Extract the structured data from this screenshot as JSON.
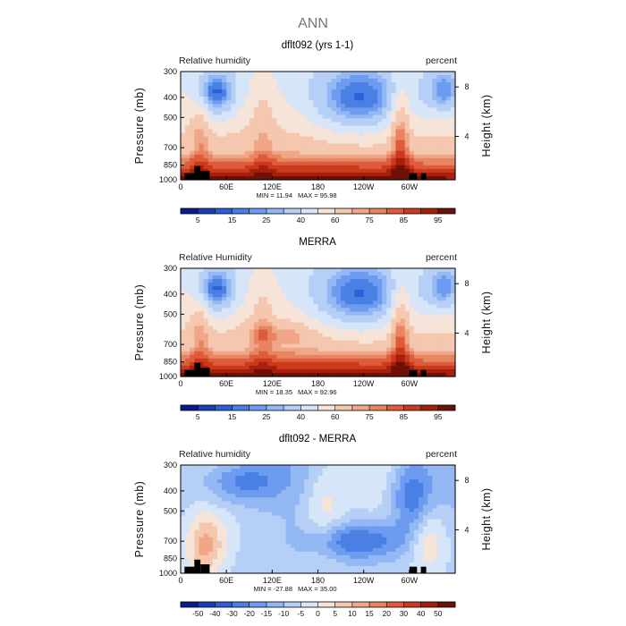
{
  "figure_title": "ANN",
  "chart_data": [
    {
      "type": "heatmap",
      "title": "dflt092 (yrs 1-1)",
      "left_label": "Relative humidity",
      "right_label": "percent",
      "ylabel": "Pressure (mb)",
      "ylabel_right": "Height (km)",
      "x_ticks": [
        "0",
        "60E",
        "120E",
        "180",
        "120W",
        "60W"
      ],
      "x_tick_values": [
        0,
        60,
        120,
        180,
        240,
        300
      ],
      "xlim": [
        0,
        360
      ],
      "y_ticks": [
        "300",
        "400",
        "500",
        "700",
        "850",
        "1000"
      ],
      "y_tick_values": [
        300,
        400,
        500,
        700,
        850,
        1000
      ],
      "ylim": [
        300,
        1000
      ],
      "y_scale": "log",
      "y_right_ticks": [
        "8",
        "4"
      ],
      "min_label": "MIN =   11.94",
      "max_label": "MAX =   95.98",
      "min": 11.94,
      "max": 95.98,
      "colorbar_ticks": [
        "5",
        "15",
        "25",
        "40",
        "60",
        "75",
        "85",
        "95"
      ],
      "colorbar_levels": [
        5,
        10,
        15,
        20,
        25,
        30,
        40,
        50,
        60,
        70,
        75,
        80,
        85,
        90,
        95
      ],
      "colorbar_colors": [
        "#0a1a8c",
        "#1d3db8",
        "#2d5fd4",
        "#4a7fe4",
        "#6d9bef",
        "#93b8f3",
        "#b5cff6",
        "#d6e5f8",
        "#f7e4d8",
        "#f5c7ae",
        "#f0a788",
        "#e98461",
        "#de5b3b",
        "#cc3a1d",
        "#a6200e",
        "#6e1106"
      ]
    },
    {
      "type": "heatmap",
      "title": "MERRA",
      "left_label": "Relative Humidity",
      "right_label": "percent",
      "ylabel": "Pressure (mb)",
      "ylabel_right": "Height (km)",
      "x_ticks": [
        "0",
        "60E",
        "120E",
        "180",
        "120W",
        "60W"
      ],
      "x_tick_values": [
        0,
        60,
        120,
        180,
        240,
        300
      ],
      "xlim": [
        0,
        360
      ],
      "y_ticks": [
        "300",
        "400",
        "500",
        "700",
        "850",
        "1000"
      ],
      "y_tick_values": [
        300,
        400,
        500,
        700,
        850,
        1000
      ],
      "ylim": [
        300,
        1000
      ],
      "y_scale": "log",
      "y_right_ticks": [
        "8",
        "4"
      ],
      "min_label": "MIN =   18.35",
      "max_label": "MAX =   92.96",
      "min": 18.35,
      "max": 92.96,
      "colorbar_ticks": [
        "5",
        "15",
        "25",
        "40",
        "60",
        "75",
        "85",
        "95"
      ],
      "colorbar_levels": [
        5,
        10,
        15,
        20,
        25,
        30,
        40,
        50,
        60,
        70,
        75,
        80,
        85,
        90,
        95
      ],
      "colorbar_colors": [
        "#0a1a8c",
        "#1d3db8",
        "#2d5fd4",
        "#4a7fe4",
        "#6d9bef",
        "#93b8f3",
        "#b5cff6",
        "#d6e5f8",
        "#f7e4d8",
        "#f5c7ae",
        "#f0a788",
        "#e98461",
        "#de5b3b",
        "#cc3a1d",
        "#a6200e",
        "#6e1106"
      ]
    },
    {
      "type": "heatmap",
      "title": "dflt092 - MERRA",
      "left_label": "Relative humidity",
      "right_label": "percent",
      "ylabel": "Pressure (mb)",
      "ylabel_right": "Height (km)",
      "x_ticks": [
        "0",
        "60E",
        "120E",
        "180",
        "120W",
        "60W"
      ],
      "x_tick_values": [
        0,
        60,
        120,
        180,
        240,
        300
      ],
      "xlim": [
        0,
        360
      ],
      "y_ticks": [
        "300",
        "400",
        "500",
        "700",
        "850",
        "1000"
      ],
      "y_tick_values": [
        300,
        400,
        500,
        700,
        850,
        1000
      ],
      "ylim": [
        300,
        1000
      ],
      "y_scale": "log",
      "y_right_ticks": [
        "8",
        "4"
      ],
      "min_label": "MIN =  -27.88",
      "max_label": "MAX =   35.00",
      "min": -27.88,
      "max": 35.0,
      "colorbar_ticks": [
        "-50",
        "-40",
        "-30",
        "-20",
        "-15",
        "-10",
        "-5",
        "0",
        "5",
        "10",
        "15",
        "20",
        "30",
        "40",
        "50"
      ],
      "colorbar_levels": [
        -50,
        -40,
        -30,
        -20,
        -15,
        -10,
        -5,
        0,
        5,
        10,
        15,
        20,
        30,
        40,
        50
      ],
      "colorbar_colors": [
        "#0a1a8c",
        "#1d3db8",
        "#2d5fd4",
        "#4a7fe4",
        "#6d9bef",
        "#93b8f3",
        "#b5cff6",
        "#d6e5f8",
        "#f7e4d8",
        "#f5c7ae",
        "#f0a788",
        "#e98461",
        "#de5b3b",
        "#cc3a1d",
        "#a6200e",
        "#6e1106"
      ]
    }
  ]
}
